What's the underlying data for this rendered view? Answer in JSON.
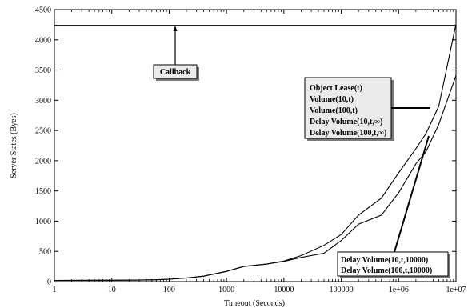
{
  "chart_data": {
    "type": "line",
    "title": "",
    "xlabel": "Timeout (Seconds)",
    "ylabel": "Server States (Byes)",
    "xscale": "log",
    "xlim": [
      1,
      10000000
    ],
    "ylim": [
      0,
      4500
    ],
    "grid": false,
    "x_ticks": [
      {
        "value": 1,
        "label": "1"
      },
      {
        "value": 10,
        "label": "10"
      },
      {
        "value": 100,
        "label": "100"
      },
      {
        "value": 1000,
        "label": "1000"
      },
      {
        "value": 10000,
        "label": "10000"
      },
      {
        "value": 100000,
        "label": "100000"
      },
      {
        "value": 1000000,
        "label": "1e+06"
      },
      {
        "value": 10000000,
        "label": "1e+07"
      }
    ],
    "y_ticks": [
      {
        "value": 0,
        "label": "0"
      },
      {
        "value": 500,
        "label": "500"
      },
      {
        "value": 1000,
        "label": "1000"
      },
      {
        "value": 1500,
        "label": "1500"
      },
      {
        "value": 2000,
        "label": "2000"
      },
      {
        "value": 2500,
        "label": "2500"
      },
      {
        "value": 3000,
        "label": "3000"
      },
      {
        "value": 3500,
        "label": "3500"
      },
      {
        "value": 4000,
        "label": "4000"
      },
      {
        "value": 4500,
        "label": "4500"
      }
    ],
    "series": [
      {
        "x": [
          1,
          10,
          30,
          60,
          100,
          200,
          400,
          1000,
          2000,
          5000,
          10000,
          20000,
          50000,
          100000,
          200000,
          500000,
          1000000,
          2000000,
          3000000,
          5000000,
          10000000
        ],
        "y": [
          20,
          22,
          25,
          30,
          40,
          60,
          90,
          170,
          250,
          290,
          340,
          430,
          600,
          780,
          1100,
          1380,
          1800,
          2200,
          2450,
          2900,
          4260
        ]
      },
      {
        "x": [
          1,
          10,
          30,
          60,
          100,
          200,
          400,
          1000,
          2000,
          5000,
          10000,
          20000,
          50000,
          100000,
          200000,
          500000,
          1000000,
          2000000,
          3000000,
          5000000,
          10000000
        ],
        "y": [
          20,
          22,
          25,
          30,
          40,
          60,
          90,
          170,
          250,
          290,
          335,
          400,
          470,
          680,
          950,
          1100,
          1470,
          1950,
          2150,
          2600,
          3410
        ]
      }
    ],
    "reference_lines": [
      {
        "orientation": "horizontal",
        "y": 4240
      }
    ],
    "annotations": [
      {
        "id": "callback",
        "lines": [
          "Callback"
        ],
        "placement": "upper-left",
        "arrow_target": {
          "x": 120,
          "y": 4240
        }
      },
      {
        "id": "upper-legend",
        "lines": [
          "Object Lease(t)",
          "Volume(10,t)",
          "Volume(100,t)",
          "Delay Volume(10,t,∞)",
          "Delay Volume(100,t,∞)"
        ],
        "placement": "right",
        "arrow_target": {
          "x": 3500000,
          "y": 2880
        }
      },
      {
        "id": "lower-legend",
        "lines": [
          "Delay Volume(10,t,10000)",
          "Delay Volume(100,t,10000)"
        ],
        "placement": "lower-right",
        "arrow_target": {
          "x": 3000000,
          "y": 2400
        }
      }
    ]
  }
}
